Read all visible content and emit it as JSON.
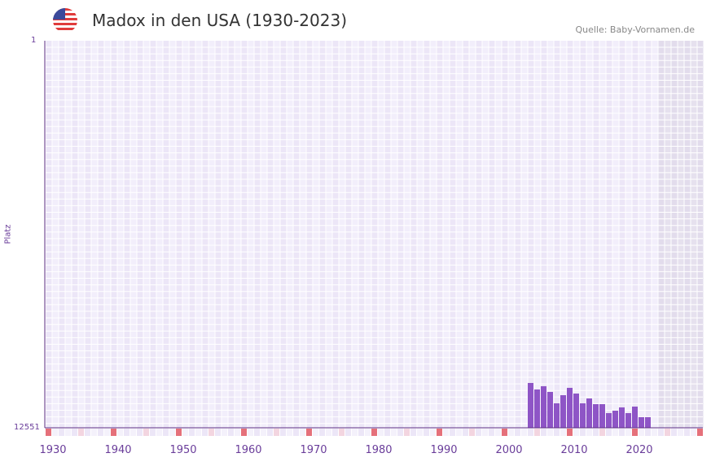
{
  "title": "Madox in den USA (1930-2023)",
  "source": "Quelle: Baby-Vornamen.de",
  "chart_data": {
    "type": "bar",
    "title": "Madox in den USA (1930-2023)",
    "xlabel": "",
    "ylabel": "Platz",
    "y_top_label": "1",
    "y_bottom_label": "12551",
    "ylim": [
      12551,
      1
    ],
    "xlim": [
      1929,
      2029
    ],
    "future_shaded_from": 2023,
    "x_ticks": [
      "1930",
      "1940",
      "1950",
      "1960",
      "1970",
      "1980",
      "1990",
      "2000",
      "2010",
      "2020"
    ],
    "years": [
      2003,
      2004,
      2005,
      2006,
      2007,
      2008,
      2009,
      2010,
      2011,
      2012,
      2013,
      2014,
      2015,
      2016,
      2017,
      2018,
      2019,
      2020,
      2021
    ],
    "ranks": [
      11098,
      11309,
      11204,
      11388,
      11758,
      11494,
      11256,
      11441,
      11758,
      11600,
      11785,
      11785,
      12075,
      11996,
      11890,
      12075,
      11864,
      12207,
      12207
    ],
    "bar_color": "#8e55c6"
  }
}
